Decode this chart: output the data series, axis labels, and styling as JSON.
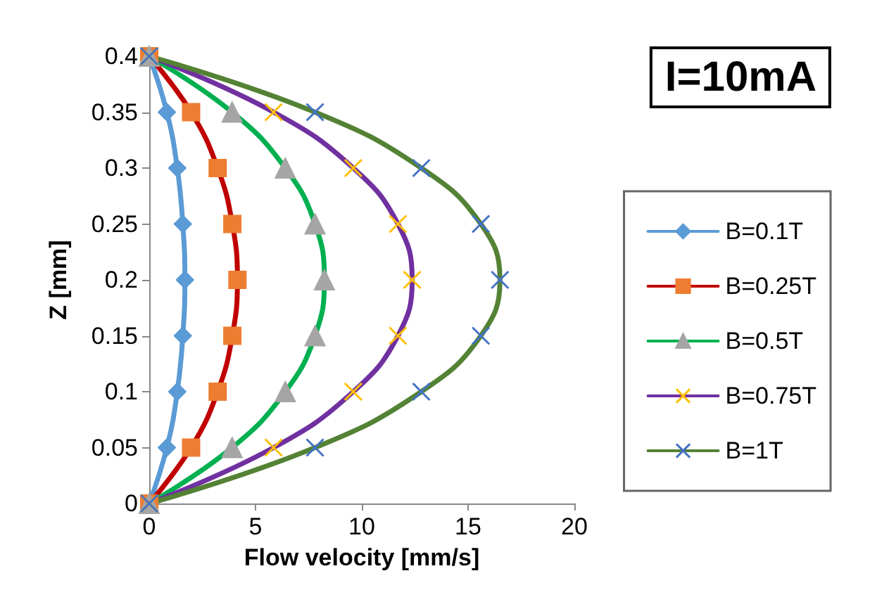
{
  "chart_data": {
    "type": "line",
    "xlabel": "Flow velocity [mm/s]",
    "ylabel": "Z [mm]",
    "annotations": [
      "I=10mA"
    ],
    "xlim": [
      0,
      20
    ],
    "xticks": [
      0,
      5,
      10,
      15,
      20
    ],
    "ylim": [
      0,
      0.4
    ],
    "yticks": [
      0,
      0.05,
      0.1,
      0.15,
      0.2,
      0.25,
      0.3,
      0.35,
      0.4
    ],
    "grid": false,
    "legend": "right",
    "series": [
      {
        "name": "B=0.1T",
        "color": "#5b9bd5",
        "marker": "diamond",
        "colors": [
          "#5b9bd5",
          "#5b9bd5",
          "#5b9bd5",
          "#5b9bd5",
          "#5b9bd5",
          "#5b9bd5",
          "#5b9bd5",
          "#5b9bd5",
          "#5b9bd5"
        ],
        "x": [
          0,
          0.83,
          1.32,
          1.58,
          1.68,
          1.58,
          1.32,
          0.83,
          0
        ],
        "values": [
          0,
          0.05,
          0.1,
          0.15,
          0.2,
          0.25,
          0.3,
          0.35,
          0.4
        ]
      },
      {
        "name": "B=0.25T",
        "color": "#c00000",
        "marker": "square",
        "colors": [
          "#ed7d31",
          "#ed7d31",
          "#ed7d31",
          "#ed7d31",
          "#ed7d31",
          "#ed7d31",
          "#ed7d31",
          "#ed7d31",
          "#ed7d31"
        ],
        "x": [
          0,
          1.97,
          3.22,
          3.91,
          4.15,
          3.91,
          3.22,
          1.97,
          0
        ],
        "values": [
          0,
          0.05,
          0.1,
          0.15,
          0.2,
          0.25,
          0.3,
          0.35,
          0.4
        ]
      },
      {
        "name": "B=0.5T",
        "color": "#00b050",
        "marker": "triangle",
        "colors": [
          "#a5a5a5",
          "#a5a5a5",
          "#a5a5a5",
          "#a5a5a5",
          "#a5a5a5",
          "#a5a5a5",
          "#a5a5a5",
          "#a5a5a5",
          "#a5a5a5"
        ],
        "x": [
          0,
          3.9,
          6.4,
          7.8,
          8.24,
          7.8,
          6.4,
          3.9,
          0
        ],
        "values": [
          0,
          0.05,
          0.1,
          0.15,
          0.2,
          0.25,
          0.3,
          0.35,
          0.4
        ]
      },
      {
        "name": "B=0.75T",
        "color": "#7030a0",
        "marker": "cross",
        "colors": [
          "#ffc000",
          "#ffc000",
          "#ffc000",
          "#ffc000",
          "#ffc000",
          "#ffc000",
          "#ffc000",
          "#ffc000",
          "#ffc000"
        ],
        "x": [
          0,
          5.85,
          9.6,
          11.7,
          12.37,
          11.7,
          9.6,
          5.85,
          0
        ],
        "values": [
          0,
          0.05,
          0.1,
          0.15,
          0.2,
          0.25,
          0.3,
          0.35,
          0.4
        ]
      },
      {
        "name": "B=1T",
        "color": "#548235",
        "marker": "cross",
        "colors": [
          "#4472c4",
          "#4472c4",
          "#4472c4",
          "#4472c4",
          "#4472c4",
          "#4472c4",
          "#4472c4",
          "#4472c4",
          "#4472c4"
        ],
        "x": [
          0,
          7.8,
          12.8,
          15.6,
          16.5,
          15.6,
          12.8,
          7.8,
          0
        ],
        "values": [
          0,
          0.05,
          0.1,
          0.15,
          0.2,
          0.25,
          0.3,
          0.35,
          0.4
        ]
      }
    ]
  }
}
